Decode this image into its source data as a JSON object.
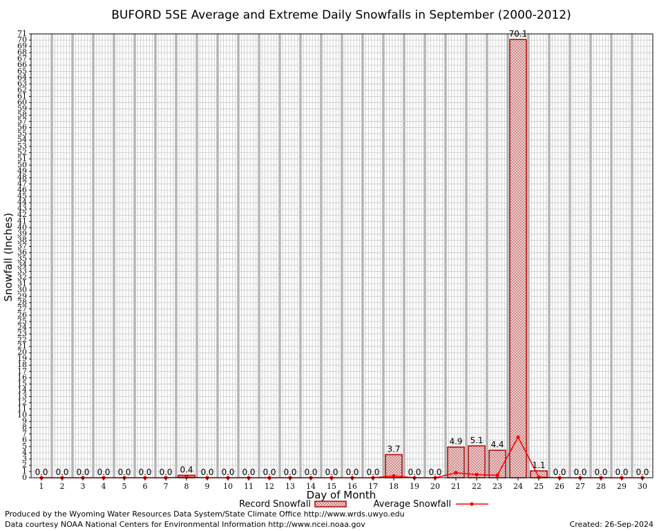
{
  "chart_data": {
    "type": "bar",
    "title": "BUFORD 5SE Average and Extreme Daily Snowfalls in September (2000-2012)",
    "xlabel": "Day of Month",
    "ylabel": "Snowfall (Inches)",
    "ylim": [
      0,
      71
    ],
    "grid": true,
    "legend_position": "bottom",
    "categories": [
      "1",
      "2",
      "3",
      "4",
      "5",
      "6",
      "7",
      "8",
      "9",
      "10",
      "11",
      "12",
      "13",
      "14",
      "15",
      "16",
      "17",
      "18",
      "19",
      "20",
      "21",
      "22",
      "23",
      "24",
      "25",
      "26",
      "27",
      "28",
      "29",
      "30"
    ],
    "series": [
      {
        "name": "Record Snowfall",
        "kind": "bar",
        "values": [
          0.0,
          0.0,
          0.0,
          0.0,
          0.0,
          0.0,
          0.0,
          0.4,
          0.0,
          0.0,
          0.0,
          0.0,
          0.0,
          0.0,
          0.0,
          0.0,
          0.0,
          3.7,
          0.0,
          0.0,
          4.9,
          5.1,
          4.4,
          70.1,
          1.1,
          0.0,
          0.0,
          0.0,
          0.0,
          0.0
        ],
        "labels": [
          "0.0",
          "0.0",
          "0.0",
          "0.0",
          "0.0",
          "0.0",
          "0.0",
          "0.4",
          "0.0",
          "0.0",
          "0.0",
          "0.0",
          "0.0",
          "0.0",
          "0.0",
          "0.0",
          "0.0",
          "3.7",
          "0.0",
          "0.0",
          "4.9",
          "5.1",
          "4.4",
          "70.1",
          "1.1",
          "0.0",
          "0.0",
          "0.0",
          "0.0",
          "0.0"
        ]
      },
      {
        "name": "Average Snowfall",
        "kind": "line",
        "values": [
          0,
          0,
          0,
          0,
          0,
          0,
          0,
          0.1,
          0,
          0,
          0,
          0,
          0,
          0,
          0,
          0,
          0,
          0.3,
          0,
          0,
          0.8,
          0.5,
          0.4,
          6.5,
          0.1,
          0,
          0,
          0,
          0,
          0
        ]
      }
    ],
    "colors": {
      "bar_fill": "#e8c8c8",
      "bar_stroke": "#b00000",
      "line": "#ff0000",
      "grid": "#c0c0c0"
    }
  },
  "footer": {
    "produced_by": "Produced by the Wyoming Water Resources Data System/State Climate Office http://www.wrds.uwyo.edu",
    "courtesy": "Data courtesy NOAA National Centers for Environmental Information http://www.ncei.noaa.gov",
    "created": "Created: 26-Sep-2024"
  }
}
